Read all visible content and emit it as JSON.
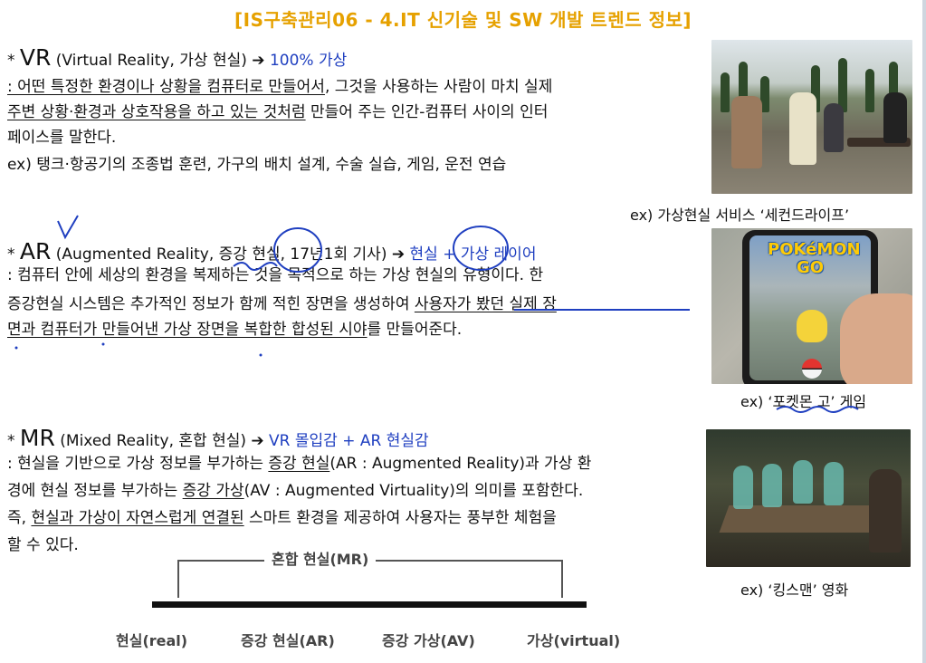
{
  "title": "[IS구축관리06 - 4.IT 신기술 및 SW 개발 트렌드 정보]",
  "vr": {
    "bullet": "*",
    "term": "VR",
    "paren": "(Virtual Reality, 가상 현실)",
    "arrow": "➔",
    "tagline": "100% 가상",
    "line1_u": ": 어떤 특정한 환경이나 상황을 컴퓨터로 만들어서",
    "line1_rest": ", 그것을 사용하는 사람이 마치 실제",
    "line2_u": "주변 상황·환경과 상호작용을 하고 있는 것처럼",
    "line2_rest": " 만들어 주는 인간-컴퓨터 사이의 인터",
    "line3": "페이스를 말한다.",
    "line4": "ex) 탱크·항공기의 조종법 훈련, 가구의 배치 설계, 수술 실습, 게임, 운전 연습",
    "caption": "ex) 가상현실 서비스 ‘세컨드라이프’"
  },
  "ar": {
    "bullet": "*",
    "term": "AR",
    "paren": "(Augmented Reality, 증강 현실, 17년1회 기사)",
    "arrow": "➔",
    "tagline": "현실 + 가상 레이어",
    "line1": ": 컴퓨터 안에 세상의 환경을 복제하는 것을 목적으로 하는 가상 현실의 유형이다. 한",
    "line2_a": "증강현실 시스템은 추가적인 정보가 함께 적힌 장면을 생성하여 ",
    "line2_u": "사용자가 봤던 실제 장",
    "line3_u": "면과 컴퓨터가 만들어낸 가상 장면을 복합한 합성된 시야",
    "line3_rest": "를 만들어준다.",
    "logo": "POKéMON GO",
    "caption_pre": "ex) ‘",
    "caption_u": "포켓몬 고",
    "caption_post": "’ 게임"
  },
  "mr": {
    "bullet": "*",
    "term": "MR",
    "paren": "(Mixed Reality, 혼합 현실)",
    "arrow": "➔",
    "tagline": "VR 몰입감 + AR 현실감",
    "line1_a": ": 현실을 기반으로 가상 정보를 부가하는 ",
    "line1_u": "증강 현실",
    "line1_rest": "(AR : Augmented Reality)과 가상 환",
    "line2_a": "경에 현실 정보를 부가하는 ",
    "line2_u": "증강 가상",
    "line2_rest": "(AV : Augmented Virtuality)의 의미를 포함한다.",
    "line3_a": "즉, ",
    "line3_u": "현실과 가상이 자연스럽게 연결된",
    "line3_rest": " 스마트 환경을 제공하여 사용자는 풍부한 체험을",
    "line4": "할 수 있다.",
    "caption": "ex) ‘킹스맨’ 영화"
  },
  "diagram": {
    "bracket_label": "혼합 현실(MR)",
    "labels": [
      "현실(real)",
      "증강 현실(AR)",
      "증강 가상(AV)",
      "가상(virtual)"
    ]
  },
  "colors": {
    "title": "#e6a100",
    "accent_blue": "#1f3fc0",
    "text": "#111111"
  }
}
